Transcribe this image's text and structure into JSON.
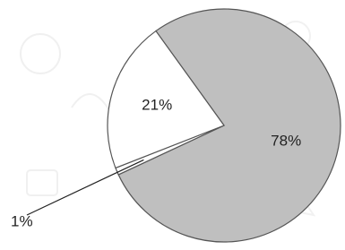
{
  "chart_data": {
    "type": "pie",
    "values": [
      78,
      1,
      21
    ],
    "value_labels": [
      "78%",
      "1%",
      "21%"
    ],
    "colors": [
      "#bfbfbf",
      "#ffffff",
      "#ffffff"
    ]
  }
}
